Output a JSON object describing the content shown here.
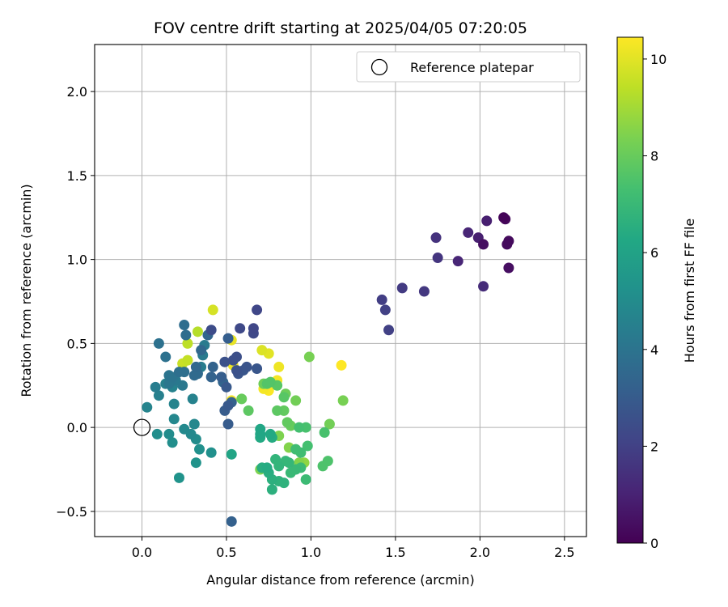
{
  "chart_data": {
    "type": "scatter",
    "title": "FOV centre drift starting at 2025/04/05 07:20:05",
    "xlabel": "Angular distance from reference (arcmin)",
    "ylabel": "Rotation from reference (arcmin)",
    "xlim": [
      -0.28,
      2.63
    ],
    "ylim": [
      -0.65,
      2.28
    ],
    "xticks": [
      0.0,
      0.5,
      1.0,
      1.5,
      2.0,
      2.5
    ],
    "xtick_labels": [
      "0.0",
      "0.5",
      "1.0",
      "1.5",
      "2.0",
      "2.5"
    ],
    "yticks": [
      -0.5,
      0.0,
      0.5,
      1.0,
      1.5,
      2.0
    ],
    "ytick_labels": [
      "−0.5",
      "0.0",
      "0.5",
      "1.0",
      "1.5",
      "2.0"
    ],
    "grid": true,
    "legend": {
      "placement": "upper right",
      "entries": [
        "Reference platepar"
      ]
    },
    "reference_point": {
      "x": 0.0,
      "y": 0.0
    },
    "colorbar": {
      "label": "Hours from first FF file",
      "colormap": "viridis",
      "min": 0,
      "max": 10.45,
      "ticks": [
        0,
        2,
        4,
        6,
        8,
        10
      ],
      "tick_labels": [
        "0",
        "2",
        "4",
        "6",
        "8",
        "10"
      ]
    },
    "points": [
      {
        "x": 2.14,
        "y": 1.25,
        "hours": 0.1
      },
      {
        "x": 2.15,
        "y": 1.24,
        "hours": 0.2
      },
      {
        "x": 2.17,
        "y": 1.11,
        "hours": 0.3
      },
      {
        "x": 2.16,
        "y": 1.09,
        "hours": 0.3
      },
      {
        "x": 2.02,
        "y": 1.09,
        "hours": 0.4
      },
      {
        "x": 2.17,
        "y": 0.95,
        "hours": 0.4
      },
      {
        "x": 2.04,
        "y": 1.23,
        "hours": 0.9
      },
      {
        "x": 1.99,
        "y": 1.13,
        "hours": 0.9
      },
      {
        "x": 1.93,
        "y": 1.16,
        "hours": 1.1
      },
      {
        "x": 1.87,
        "y": 0.99,
        "hours": 1.1
      },
      {
        "x": 2.02,
        "y": 0.84,
        "hours": 1.3
      },
      {
        "x": 1.74,
        "y": 1.13,
        "hours": 1.5
      },
      {
        "x": 1.75,
        "y": 1.01,
        "hours": 1.6
      },
      {
        "x": 1.67,
        "y": 0.81,
        "hours": 1.7
      },
      {
        "x": 1.54,
        "y": 0.83,
        "hours": 1.8
      },
      {
        "x": 1.42,
        "y": 0.76,
        "hours": 1.9
      },
      {
        "x": 1.44,
        "y": 0.7,
        "hours": 2.0
      },
      {
        "x": 1.46,
        "y": 0.58,
        "hours": 2.0
      },
      {
        "x": 0.68,
        "y": 0.7,
        "hours": 2.2
      },
      {
        "x": 0.66,
        "y": 0.59,
        "hours": 2.2
      },
      {
        "x": 0.66,
        "y": 0.56,
        "hours": 2.3
      },
      {
        "x": 0.58,
        "y": 0.59,
        "hours": 2.3
      },
      {
        "x": 0.41,
        "y": 0.58,
        "hours": 2.4
      },
      {
        "x": 0.56,
        "y": 0.42,
        "hours": 2.5
      },
      {
        "x": 0.54,
        "y": 0.4,
        "hours": 2.5
      },
      {
        "x": 0.49,
        "y": 0.39,
        "hours": 2.6
      },
      {
        "x": 0.56,
        "y": 0.34,
        "hours": 2.6
      },
      {
        "x": 0.57,
        "y": 0.32,
        "hours": 2.7
      },
      {
        "x": 0.62,
        "y": 0.36,
        "hours": 2.7
      },
      {
        "x": 0.6,
        "y": 0.34,
        "hours": 2.8
      },
      {
        "x": 0.68,
        "y": 0.35,
        "hours": 2.8
      },
      {
        "x": 0.5,
        "y": 0.24,
        "hours": 2.9
      },
      {
        "x": 0.51,
        "y": 0.13,
        "hours": 2.9
      },
      {
        "x": 0.49,
        "y": 0.1,
        "hours": 3.0
      },
      {
        "x": 0.51,
        "y": 0.02,
        "hours": 3.0
      },
      {
        "x": 0.51,
        "y": 0.53,
        "hours": 3.1
      },
      {
        "x": 0.47,
        "y": 0.3,
        "hours": 3.1
      },
      {
        "x": 0.53,
        "y": 0.15,
        "hours": 3.2
      },
      {
        "x": 0.53,
        "y": -0.56,
        "hours": 3.2
      },
      {
        "x": 0.42,
        "y": 0.36,
        "hours": 3.3
      },
      {
        "x": 0.41,
        "y": 0.3,
        "hours": 3.3
      },
      {
        "x": 0.48,
        "y": 0.27,
        "hours": 3.4
      },
      {
        "x": 0.39,
        "y": 0.55,
        "hours": 3.4
      },
      {
        "x": 0.35,
        "y": 0.46,
        "hours": 3.5
      },
      {
        "x": 0.32,
        "y": 0.36,
        "hours": 3.5
      },
      {
        "x": 0.33,
        "y": 0.32,
        "hours": 3.6
      },
      {
        "x": 0.31,
        "y": 0.31,
        "hours": 3.6
      },
      {
        "x": 0.25,
        "y": 0.61,
        "hours": 3.7
      },
      {
        "x": 0.26,
        "y": 0.55,
        "hours": 3.7
      },
      {
        "x": 0.25,
        "y": 0.33,
        "hours": 3.8
      },
      {
        "x": 0.22,
        "y": 0.33,
        "hours": 3.8
      },
      {
        "x": 0.1,
        "y": 0.5,
        "hours": 3.9
      },
      {
        "x": 0.14,
        "y": 0.42,
        "hours": 3.9
      },
      {
        "x": 0.16,
        "y": 0.31,
        "hours": 4.0
      },
      {
        "x": 0.18,
        "y": 0.3,
        "hours": 4.0
      },
      {
        "x": 0.16,
        "y": 0.26,
        "hours": 4.1
      },
      {
        "x": 0.17,
        "y": 0.28,
        "hours": 4.1
      },
      {
        "x": 0.2,
        "y": 0.28,
        "hours": 4.2
      },
      {
        "x": 0.24,
        "y": 0.25,
        "hours": 4.2
      },
      {
        "x": 0.36,
        "y": 0.43,
        "hours": 4.3
      },
      {
        "x": 0.37,
        "y": 0.49,
        "hours": 4.3
      },
      {
        "x": 0.35,
        "y": 0.36,
        "hours": 4.4
      },
      {
        "x": 0.08,
        "y": 0.24,
        "hours": 4.4
      },
      {
        "x": 0.1,
        "y": 0.19,
        "hours": 4.5
      },
      {
        "x": 0.14,
        "y": 0.26,
        "hours": 4.5
      },
      {
        "x": 0.18,
        "y": 0.24,
        "hours": 4.6
      },
      {
        "x": 0.3,
        "y": 0.17,
        "hours": 4.6
      },
      {
        "x": 0.19,
        "y": 0.14,
        "hours": 4.7
      },
      {
        "x": 0.03,
        "y": 0.12,
        "hours": 4.7
      },
      {
        "x": 0.19,
        "y": 0.05,
        "hours": 4.8
      },
      {
        "x": 0.31,
        "y": 0.02,
        "hours": 4.8
      },
      {
        "x": 0.25,
        "y": -0.01,
        "hours": 4.9
      },
      {
        "x": 0.29,
        "y": -0.04,
        "hours": 4.9
      },
      {
        "x": 0.32,
        "y": -0.07,
        "hours": 5.0
      },
      {
        "x": 0.16,
        "y": -0.04,
        "hours": 5.0
      },
      {
        "x": 0.09,
        "y": -0.04,
        "hours": 5.1
      },
      {
        "x": 0.18,
        "y": -0.09,
        "hours": 5.1
      },
      {
        "x": 0.34,
        "y": -0.13,
        "hours": 5.2
      },
      {
        "x": 0.41,
        "y": -0.15,
        "hours": 5.2
      },
      {
        "x": 0.32,
        "y": -0.21,
        "hours": 5.3
      },
      {
        "x": 0.22,
        "y": -0.3,
        "hours": 5.3
      },
      {
        "x": 0.53,
        "y": -0.16,
        "hours": 6.1
      },
      {
        "x": 0.7,
        "y": -0.01,
        "hours": 6.2
      },
      {
        "x": 0.7,
        "y": -0.04,
        "hours": 6.2
      },
      {
        "x": 0.7,
        "y": -0.06,
        "hours": 6.3
      },
      {
        "x": 0.76,
        "y": -0.04,
        "hours": 6.3
      },
      {
        "x": 0.77,
        "y": -0.06,
        "hours": 6.4
      },
      {
        "x": 0.74,
        "y": -0.24,
        "hours": 6.4
      },
      {
        "x": 0.71,
        "y": -0.24,
        "hours": 6.5
      },
      {
        "x": 0.75,
        "y": -0.27,
        "hours": 6.5
      },
      {
        "x": 0.77,
        "y": -0.31,
        "hours": 6.6
      },
      {
        "x": 0.77,
        "y": -0.37,
        "hours": 6.6
      },
      {
        "x": 0.81,
        "y": -0.32,
        "hours": 6.7
      },
      {
        "x": 0.84,
        "y": -0.33,
        "hours": 6.7
      },
      {
        "x": 0.79,
        "y": -0.19,
        "hours": 6.8
      },
      {
        "x": 0.81,
        "y": -0.23,
        "hours": 6.8
      },
      {
        "x": 0.85,
        "y": -0.2,
        "hours": 6.9
      },
      {
        "x": 0.87,
        "y": -0.21,
        "hours": 6.9
      },
      {
        "x": 0.88,
        "y": -0.27,
        "hours": 7.0
      },
      {
        "x": 0.91,
        "y": -0.25,
        "hours": 7.0
      },
      {
        "x": 0.94,
        "y": -0.24,
        "hours": 7.1
      },
      {
        "x": 0.97,
        "y": -0.31,
        "hours": 7.1
      },
      {
        "x": 0.91,
        "y": -0.13,
        "hours": 7.2
      },
      {
        "x": 0.94,
        "y": -0.15,
        "hours": 7.2
      },
      {
        "x": 0.98,
        "y": -0.11,
        "hours": 7.3
      },
      {
        "x": 0.93,
        "y": 0.0,
        "hours": 7.3
      },
      {
        "x": 0.97,
        "y": 0.0,
        "hours": 7.4
      },
      {
        "x": 1.08,
        "y": -0.03,
        "hours": 7.4
      },
      {
        "x": 1.1,
        "y": -0.2,
        "hours": 7.5
      },
      {
        "x": 1.07,
        "y": -0.23,
        "hours": 7.5
      },
      {
        "x": 0.74,
        "y": 0.26,
        "hours": 7.6
      },
      {
        "x": 0.76,
        "y": 0.27,
        "hours": 7.6
      },
      {
        "x": 0.8,
        "y": 0.25,
        "hours": 7.7
      },
      {
        "x": 0.84,
        "y": 0.18,
        "hours": 7.7
      },
      {
        "x": 0.8,
        "y": 0.1,
        "hours": 7.8
      },
      {
        "x": 0.63,
        "y": 0.1,
        "hours": 7.8
      },
      {
        "x": 0.84,
        "y": 0.1,
        "hours": 7.9
      },
      {
        "x": 0.86,
        "y": 0.03,
        "hours": 7.9
      },
      {
        "x": 0.88,
        "y": 0.01,
        "hours": 8.0
      },
      {
        "x": 0.59,
        "y": 0.17,
        "hours": 8.0
      },
      {
        "x": 0.72,
        "y": 0.26,
        "hours": 8.1
      },
      {
        "x": 0.85,
        "y": 0.2,
        "hours": 8.1
      },
      {
        "x": 0.91,
        "y": 0.16,
        "hours": 8.2
      },
      {
        "x": 1.11,
        "y": 0.02,
        "hours": 8.2
      },
      {
        "x": 1.19,
        "y": 0.16,
        "hours": 8.3
      },
      {
        "x": 0.99,
        "y": 0.42,
        "hours": 8.3
      },
      {
        "x": 0.7,
        "y": -0.25,
        "hours": 8.4
      },
      {
        "x": 0.81,
        "y": -0.05,
        "hours": 8.4
      },
      {
        "x": 0.87,
        "y": -0.12,
        "hours": 8.5
      },
      {
        "x": 0.93,
        "y": -0.21,
        "hours": 8.5
      },
      {
        "x": 0.96,
        "y": -0.21,
        "hours": 8.7
      },
      {
        "x": 0.33,
        "y": 0.57,
        "hours": 9.3
      },
      {
        "x": 0.27,
        "y": 0.5,
        "hours": 9.4
      },
      {
        "x": 0.27,
        "y": 0.4,
        "hours": 9.5
      },
      {
        "x": 0.24,
        "y": 0.38,
        "hours": 9.6
      },
      {
        "x": 0.42,
        "y": 0.7,
        "hours": 9.8
      },
      {
        "x": 0.71,
        "y": 0.46,
        "hours": 9.9
      },
      {
        "x": 0.75,
        "y": 0.44,
        "hours": 10.0
      },
      {
        "x": 0.53,
        "y": 0.52,
        "hours": 10.1
      },
      {
        "x": 0.54,
        "y": 0.37,
        "hours": 10.2
      },
      {
        "x": 0.81,
        "y": 0.36,
        "hours": 10.2
      },
      {
        "x": 0.8,
        "y": 0.28,
        "hours": 10.3
      },
      {
        "x": 0.72,
        "y": 0.23,
        "hours": 10.3
      },
      {
        "x": 0.75,
        "y": 0.22,
        "hours": 10.4
      },
      {
        "x": 0.53,
        "y": 0.16,
        "hours": 10.4
      },
      {
        "x": 1.18,
        "y": 0.37,
        "hours": 10.45
      }
    ]
  }
}
